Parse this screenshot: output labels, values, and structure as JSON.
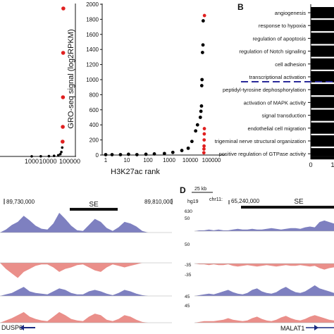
{
  "panel_letters": {
    "b": "B",
    "d": "D"
  },
  "chart_data": [
    {
      "type": "scatter",
      "panel": "A-left",
      "xlabel": "H3K27ac rank",
      "x_scale": "log",
      "xticks": [
        "1000",
        "10000",
        "100000"
      ],
      "colors": {
        "typical": "#000000",
        "super_enhancer": "#e02020"
      },
      "points_typical": [
        [
          1000,
          0.5
        ],
        [
          3000,
          1
        ],
        [
          8000,
          2
        ],
        [
          15000,
          4
        ],
        [
          25000,
          8
        ],
        [
          32000,
          15
        ],
        [
          36000,
          30
        ],
        [
          40000,
          60
        ]
      ],
      "points_super_enhancer": [
        [
          42000,
          100
        ],
        [
          43000,
          200
        ],
        [
          44000,
          400
        ],
        [
          45000,
          700
        ],
        [
          46000,
          1000
        ]
      ]
    },
    {
      "type": "scatter",
      "panel": "A-right",
      "xlabel": "H3K27ac rank",
      "ylabel": "GRO-seq signal (log2RPKM)",
      "x_scale": "log",
      "ylim": [
        0,
        2000
      ],
      "yticks": [
        0,
        200,
        400,
        600,
        800,
        1000,
        1200,
        1400,
        1600,
        1800,
        2000
      ],
      "xticks": [
        "1",
        "10",
        "100",
        "1000",
        "10000",
        "100000"
      ],
      "colors": {
        "typical": "#000000",
        "super_enhancer": "#e02020"
      },
      "points_typical": [
        [
          1,
          5
        ],
        [
          2,
          5
        ],
        [
          5,
          5
        ],
        [
          12,
          10
        ],
        [
          30,
          5
        ],
        [
          80,
          10
        ],
        [
          200,
          15
        ],
        [
          600,
          20
        ],
        [
          1500,
          35
        ],
        [
          4000,
          60
        ],
        [
          8000,
          90
        ],
        [
          12000,
          180
        ],
        [
          18000,
          320
        ],
        [
          22000,
          400
        ],
        [
          30000,
          500
        ],
        [
          32000,
          580
        ],
        [
          34000,
          650
        ],
        [
          35000,
          920
        ],
        [
          36000,
          1000
        ],
        [
          38000,
          1360
        ],
        [
          40000,
          1460
        ],
        [
          41000,
          1780
        ]
      ],
      "points_super_enhancer": [
        [
          44000,
          30
        ],
        [
          44500,
          80
        ],
        [
          45000,
          120
        ],
        [
          45500,
          200
        ],
        [
          46000,
          280
        ],
        [
          46500,
          350
        ],
        [
          47000,
          1850
        ]
      ]
    },
    {
      "type": "bar",
      "panel": "B",
      "orientation": "horizontal",
      "categories": [
        "angiogenesis",
        "response to hypoxia",
        "regulation of apoptosis",
        "regulation of Notch signaling",
        "cell adhesion",
        "transcriptional activation",
        "peptidyl-tyrosine dephosphorylation",
        "activation of MAPK activity",
        "signal transduction",
        "endothelial cell migration",
        "trigeminal nerve structural organization",
        "positive regulation of GTPase activity"
      ],
      "xticks": [
        "0",
        "1"
      ],
      "bar_color": "#000000",
      "divider_color": "#2a2a9a"
    },
    {
      "type": "area",
      "panel": "C",
      "coord_left": "89,730,000",
      "coord_right": "89,810,000",
      "region_label": "SE",
      "gene_label": "DUSP6",
      "tracks": [
        {
          "color": "#7e80c0",
          "values": [
            0,
            4,
            10,
            14,
            22,
            16,
            9,
            5,
            4,
            12,
            26,
            18,
            9,
            3,
            2,
            10,
            18,
            14,
            6,
            2,
            7,
            14,
            12,
            8,
            2,
            0,
            0,
            0,
            0,
            0
          ]
        },
        {
          "color": "#ea8f8a",
          "values": [
            0,
            -8,
            -14,
            -20,
            -12,
            -8,
            -4,
            -2,
            -2,
            -6,
            -12,
            -8,
            -6,
            -3,
            -2,
            -6,
            -10,
            -12,
            -6,
            -2,
            -4,
            -6,
            -4,
            -2,
            0,
            0,
            0,
            0,
            0,
            0
          ]
        },
        {
          "color": "#7e80c0",
          "values": [
            0,
            2,
            4,
            8,
            12,
            6,
            4,
            3,
            2,
            6,
            10,
            8,
            4,
            2,
            2,
            6,
            8,
            6,
            3,
            1,
            4,
            8,
            6,
            3,
            1,
            0,
            0,
            0,
            0,
            0
          ]
        },
        {
          "color": "#ea8f8a",
          "values": [
            0,
            3,
            6,
            10,
            14,
            8,
            5,
            3,
            2,
            8,
            14,
            10,
            5,
            3,
            2,
            8,
            12,
            10,
            4,
            2,
            5,
            10,
            8,
            4,
            1,
            0,
            0,
            0,
            0,
            0
          ]
        }
      ]
    },
    {
      "type": "area",
      "panel": "D",
      "scale_label": "25 kb",
      "genome_label": "hg19",
      "coord_label": "chr11:",
      "coord_value": "65,240,000",
      "region_label": "SE",
      "gene_label": "MALAT1",
      "track_scales": [
        "630",
        "50",
        "50",
        "-35",
        "-35",
        "45",
        "45"
      ],
      "tracks": [
        {
          "color": "#7e80c0",
          "values": [
            0,
            1,
            1,
            2,
            1,
            2,
            1,
            1,
            2,
            3,
            2,
            2,
            3,
            2,
            2,
            3,
            4,
            3,
            2,
            3,
            4,
            4,
            3,
            5,
            6,
            5,
            12,
            14,
            12,
            10
          ]
        },
        {
          "color": "#ea8f8a",
          "values": [
            0,
            -1,
            -1,
            -2,
            -1,
            -2,
            -2,
            -1,
            -3,
            -4,
            -3,
            -2,
            -3,
            -4,
            -3,
            -2,
            -3,
            -4,
            -3,
            -2,
            -3,
            -3,
            -2,
            -3,
            -4,
            -3,
            -6,
            -8,
            -6,
            -5
          ]
        },
        {
          "color": "#7e80c0",
          "values": [
            0,
            1,
            2,
            3,
            2,
            4,
            6,
            8,
            5,
            3,
            2,
            4,
            8,
            10,
            6,
            4,
            3,
            5,
            9,
            12,
            8,
            5,
            4,
            6,
            10,
            14,
            10,
            8,
            6,
            4
          ]
        },
        {
          "color": "#ea8f8a",
          "values": [
            0,
            1,
            2,
            2,
            2,
            3,
            4,
            6,
            4,
            3,
            2,
            3,
            6,
            8,
            5,
            3,
            2,
            4,
            7,
            9,
            6,
            4,
            3,
            5,
            8,
            10,
            8,
            6,
            4,
            3
          ]
        }
      ]
    }
  ]
}
